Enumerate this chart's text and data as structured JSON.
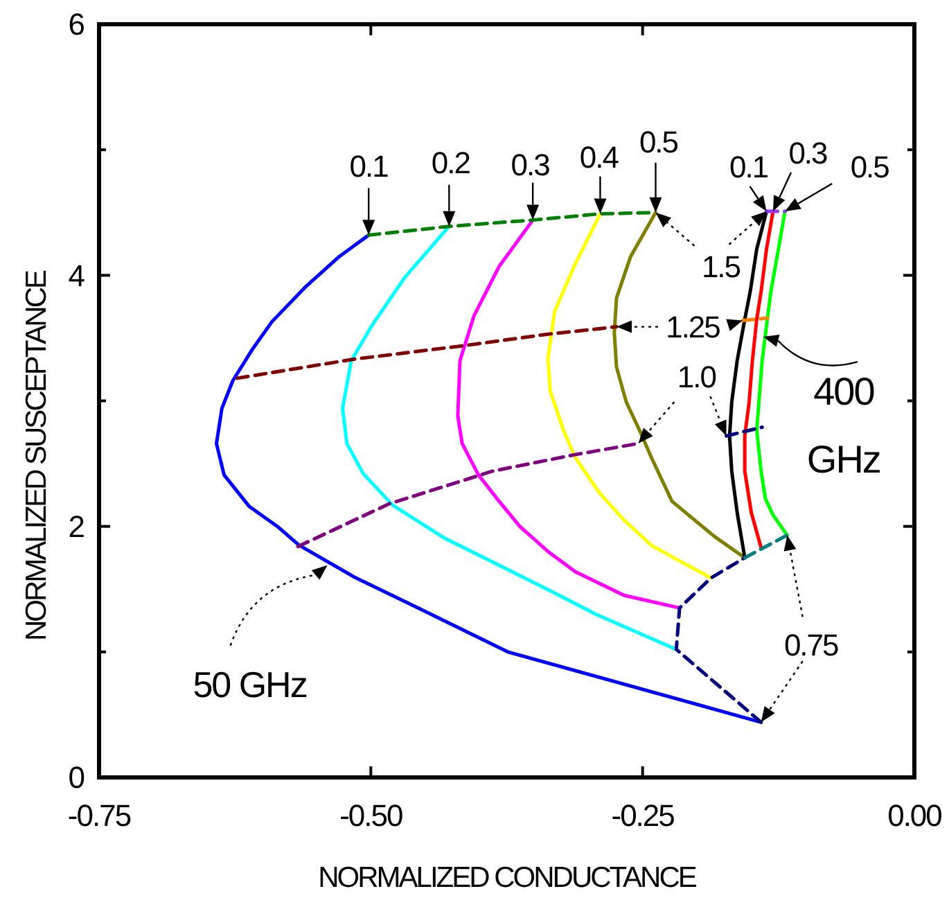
{
  "chart_data": {
    "type": "line",
    "xlabel": "NORMALIZED CONDUCTANCE",
    "ylabel": "NORMALIZED SUSCEPTANCE",
    "xlim": [
      -0.75,
      0
    ],
    "xticks": [
      {
        "value": -0.75,
        "label": "-0.75"
      },
      {
        "value": -0.5,
        "label": "-0.50"
      },
      {
        "value": -0.25,
        "label": "-0.25"
      },
      {
        "value": 0,
        "label": "0.00"
      }
    ],
    "ylim": [
      0,
      6
    ],
    "yticks": [
      0,
      {
        "value": 1,
        "label": null
      },
      2,
      {
        "value": 3,
        "label": null
      },
      4,
      {
        "value": 5,
        "label": null
      },
      6
    ],
    "series": [
      {
        "color": "#0000ff",
        "line_style": "solid",
        "x": [
          -0.502,
          -0.529,
          -0.561,
          -0.591,
          -0.609,
          -0.627,
          -0.637,
          -0.642,
          -0.635,
          -0.612,
          -0.586,
          -0.566,
          -0.516,
          -0.459,
          -0.374,
          -0.141
        ],
        "values": [
          4.32,
          4.15,
          3.9,
          3.63,
          3.41,
          3.16,
          2.94,
          2.66,
          2.41,
          2.16,
          2.0,
          1.85,
          1.6,
          1.36,
          1.0,
          0.44
        ]
      },
      {
        "color": "#00ffff",
        "line_style": "solid",
        "x": [
          -0.428,
          -0.469,
          -0.499,
          -0.518,
          -0.526,
          -0.522,
          -0.507,
          -0.48,
          -0.433,
          -0.382,
          -0.331,
          -0.293,
          -0.219
        ],
        "values": [
          4.39,
          3.98,
          3.6,
          3.32,
          2.94,
          2.66,
          2.42,
          2.17,
          1.91,
          1.69,
          1.47,
          1.3,
          1.02
        ]
      },
      {
        "color": "#ff00ff",
        "line_style": "solid",
        "x": [
          -0.351,
          -0.382,
          -0.405,
          -0.418,
          -0.42,
          -0.416,
          -0.401,
          -0.382,
          -0.363,
          -0.337,
          -0.312,
          -0.267,
          -0.216
        ],
        "values": [
          4.44,
          4.07,
          3.68,
          3.32,
          2.88,
          2.66,
          2.41,
          2.2,
          2.0,
          1.8,
          1.64,
          1.45,
          1.35
        ]
      },
      {
        "color": "#ffff00",
        "line_style": "solid",
        "x": [
          -0.289,
          -0.312,
          -0.331,
          -0.337,
          -0.335,
          -0.323,
          -0.312,
          -0.29,
          -0.267,
          -0.242,
          -0.215,
          -0.187
        ],
        "values": [
          4.49,
          4.09,
          3.71,
          3.34,
          3.08,
          2.77,
          2.55,
          2.27,
          2.05,
          1.85,
          1.72,
          1.59
        ]
      },
      {
        "color": "#808000",
        "line_style": "solid",
        "x": [
          -0.238,
          -0.261,
          -0.274,
          -0.276,
          -0.274,
          -0.265,
          -0.252,
          -0.242,
          -0.223,
          -0.184,
          -0.156
        ],
        "values": [
          4.5,
          4.15,
          3.82,
          3.54,
          3.27,
          2.99,
          2.75,
          2.55,
          2.2,
          1.92,
          1.75
        ]
      },
      {
        "color": "#000000",
        "line_style": "solid",
        "x": [
          -0.136,
          -0.145,
          -0.151,
          -0.156,
          -0.163,
          -0.168,
          -0.17,
          -0.168,
          -0.163,
          -0.156
        ],
        "values": [
          4.51,
          4.21,
          3.87,
          3.65,
          3.32,
          2.99,
          2.72,
          2.44,
          2.11,
          1.75
        ]
      },
      {
        "color": "#ff0000",
        "line_style": "solid",
        "x": [
          -0.13,
          -0.136,
          -0.141,
          -0.145,
          -0.149,
          -0.152,
          -0.156,
          -0.156,
          -0.15,
          -0.141
        ],
        "values": [
          4.51,
          4.21,
          3.87,
          3.65,
          3.32,
          2.99,
          2.72,
          2.44,
          2.11,
          1.83
        ]
      },
      {
        "color": "#00ff00",
        "line_style": "solid",
        "x": [
          -0.119,
          -0.125,
          -0.132,
          -0.136,
          -0.14,
          -0.143,
          -0.145,
          -0.141,
          -0.137,
          -0.13,
          -0.117
        ],
        "values": [
          4.51,
          4.21,
          3.87,
          3.6,
          3.32,
          2.99,
          2.77,
          2.44,
          2.22,
          2.09,
          1.93
        ]
      },
      {
        "color": "#008000",
        "line_style": "dashed",
        "x": [
          -0.502,
          -0.428,
          -0.351,
          -0.289,
          -0.238
        ],
        "values": [
          4.32,
          4.39,
          4.44,
          4.49,
          4.5
        ]
      },
      {
        "color": "#9933ff",
        "line_style": "dashed",
        "x": [
          -0.136,
          -0.119
        ],
        "values": [
          4.51,
          4.51
        ]
      },
      {
        "color": "#800000",
        "line_style": "dashed",
        "x": [
          -0.623,
          -0.517,
          -0.414,
          -0.338,
          -0.274
        ],
        "values": [
          3.18,
          3.33,
          3.44,
          3.53,
          3.59
        ]
      },
      {
        "color": "#ff8000",
        "line_style": "dashed",
        "x": [
          -0.158,
          -0.135
        ],
        "values": [
          3.64,
          3.66
        ]
      },
      {
        "color": "#800080",
        "line_style": "dashed",
        "x": [
          -0.567,
          -0.483,
          -0.388,
          -0.313,
          -0.254
        ],
        "values": [
          1.84,
          2.18,
          2.44,
          2.57,
          2.66
        ]
      },
      {
        "color": "#000080",
        "line_style": "dashed",
        "x": [
          -0.173,
          -0.14
        ],
        "values": [
          2.72,
          2.79
        ]
      },
      {
        "color": "#000080",
        "line_style": "dashed",
        "x": [
          -0.141,
          -0.219,
          -0.216,
          -0.187,
          -0.156
        ],
        "values": [
          0.44,
          1.02,
          1.35,
          1.59,
          1.75
        ]
      },
      {
        "color": "#008080",
        "line_style": "dashed",
        "x": [
          -0.156,
          -0.117
        ],
        "values": [
          1.75,
          1.93
        ]
      }
    ],
    "annotations": [
      {
        "text": "0.1",
        "x": -0.502,
        "y": 4.32
      },
      {
        "text": "0.2",
        "x": -0.428,
        "y": 4.39
      },
      {
        "text": "0.3",
        "x": -0.351,
        "y": 4.44
      },
      {
        "text": "0.4",
        "x": -0.289,
        "y": 4.49
      },
      {
        "text": "0.5",
        "x": -0.238,
        "y": 4.5
      },
      {
        "text": "0.1",
        "x": -0.136,
        "y": 4.51
      },
      {
        "text": "0.3",
        "x": -0.13,
        "y": 4.51
      },
      {
        "text": "0.5",
        "x": -0.119,
        "y": 4.51
      },
      {
        "text": "1.5",
        "x": -0.238,
        "y": 4.5
      },
      {
        "text": "1.25",
        "x": -0.274,
        "y": 3.59
      },
      {
        "text": "1.0",
        "x": -0.254,
        "y": 2.66
      },
      {
        "text": "0.75",
        "x": -0.141,
        "y": 0.44
      },
      {
        "text": "400 GHz",
        "x": -0.139,
        "y": 3.51
      },
      {
        "text": "50 GHz",
        "x": -0.54,
        "y": 1.69
      }
    ]
  }
}
